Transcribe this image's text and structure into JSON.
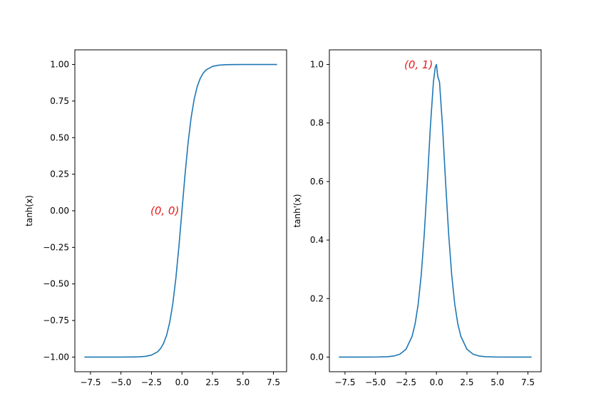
{
  "chart_data": [
    {
      "type": "line",
      "title": "",
      "xlabel": "",
      "ylabel": "tanh(x)",
      "xlim": [
        -8.78,
        8.58
      ],
      "ylim": [
        -1.1,
        1.1
      ],
      "xticks": [
        -7.5,
        -5.0,
        -2.5,
        0.0,
        2.5,
        5.0,
        7.5
      ],
      "xtick_labels": [
        "−7.5",
        "−5.0",
        "−2.5",
        "0.0",
        "2.5",
        "5.0",
        "7.5"
      ],
      "yticks": [
        -1.0,
        -0.75,
        -0.5,
        -0.25,
        0.0,
        0.25,
        0.5,
        0.75,
        1.0
      ],
      "ytick_labels": [
        "−1.00",
        "−0.75",
        "−0.50",
        "−0.25",
        "0.00",
        "0.25",
        "0.50",
        "0.75",
        "1.00"
      ],
      "grid": false,
      "line_color": "#1f77b4",
      "annotation": {
        "text": "(0, 0)",
        "x": 0,
        "y": 0,
        "color": "#e41a1c"
      },
      "series": [
        {
          "x": [
            -8.0,
            -7.0,
            -6.0,
            -5.0,
            -4.0,
            -3.5,
            -3.0,
            -2.5,
            -2.0,
            -1.75,
            -1.5,
            -1.25,
            -1.0,
            -0.75,
            -0.5,
            -0.25,
            0.0,
            0.25,
            0.5,
            0.75,
            1.0,
            1.25,
            1.5,
            1.75,
            2.0,
            2.5,
            3.0,
            3.5,
            4.0,
            5.0,
            6.0,
            7.0,
            7.8
          ],
          "y": [
            -1.0,
            -1.0,
            -1.0,
            -0.9999,
            -0.9993,
            -0.9982,
            -0.9951,
            -0.9866,
            -0.964,
            -0.9414,
            -0.9051,
            -0.8483,
            -0.7616,
            -0.6351,
            -0.4621,
            -0.2449,
            0.0,
            0.2449,
            0.4621,
            0.6351,
            0.7616,
            0.8483,
            0.9051,
            0.9414,
            0.964,
            0.9866,
            0.9951,
            0.9982,
            0.9993,
            0.9999,
            1.0,
            1.0,
            1.0
          ]
        }
      ]
    },
    {
      "type": "line",
      "title": "",
      "xlabel": "",
      "ylabel": "tanh'(x)",
      "xlim": [
        -8.78,
        8.58
      ],
      "ylim": [
        -0.05,
        1.05
      ],
      "xticks": [
        -7.5,
        -5.0,
        -2.5,
        0.0,
        2.5,
        5.0,
        7.5
      ],
      "xtick_labels": [
        "−7.5",
        "−5.0",
        "−2.5",
        "0.0",
        "2.5",
        "5.0",
        "7.5"
      ],
      "yticks": [
        0.0,
        0.2,
        0.4,
        0.6,
        0.8,
        1.0
      ],
      "ytick_labels": [
        "0.0",
        "0.2",
        "0.4",
        "0.6",
        "0.8",
        "1.0"
      ],
      "grid": false,
      "line_color": "#1f77b4",
      "annotation": {
        "text": "(0, 1)",
        "x": 0,
        "y": 1,
        "color": "#e41a1c"
      },
      "series": [
        {
          "x": [
            -8.0,
            -7.0,
            -6.0,
            -5.0,
            -4.0,
            -3.5,
            -3.0,
            -2.5,
            -2.0,
            -1.75,
            -1.5,
            -1.25,
            -1.0,
            -0.75,
            -0.5,
            -0.25,
            -0.1,
            0.0,
            0.1,
            0.25,
            0.5,
            0.75,
            1.0,
            1.25,
            1.5,
            1.75,
            2.0,
            2.5,
            3.0,
            3.5,
            4.0,
            5.0,
            6.0,
            7.0,
            7.8
          ],
          "y": [
            0.0,
            0.0,
            0.0,
            0.0002,
            0.0013,
            0.0036,
            0.0099,
            0.0266,
            0.0707,
            0.1138,
            0.1807,
            0.2804,
            0.42,
            0.5966,
            0.7864,
            0.94,
            0.99,
            1.0,
            0.96,
            0.94,
            0.7864,
            0.5966,
            0.42,
            0.2804,
            0.1807,
            0.1138,
            0.0707,
            0.0266,
            0.0099,
            0.0036,
            0.0013,
            0.0002,
            0.0,
            0.0,
            0.0
          ]
        }
      ]
    }
  ]
}
